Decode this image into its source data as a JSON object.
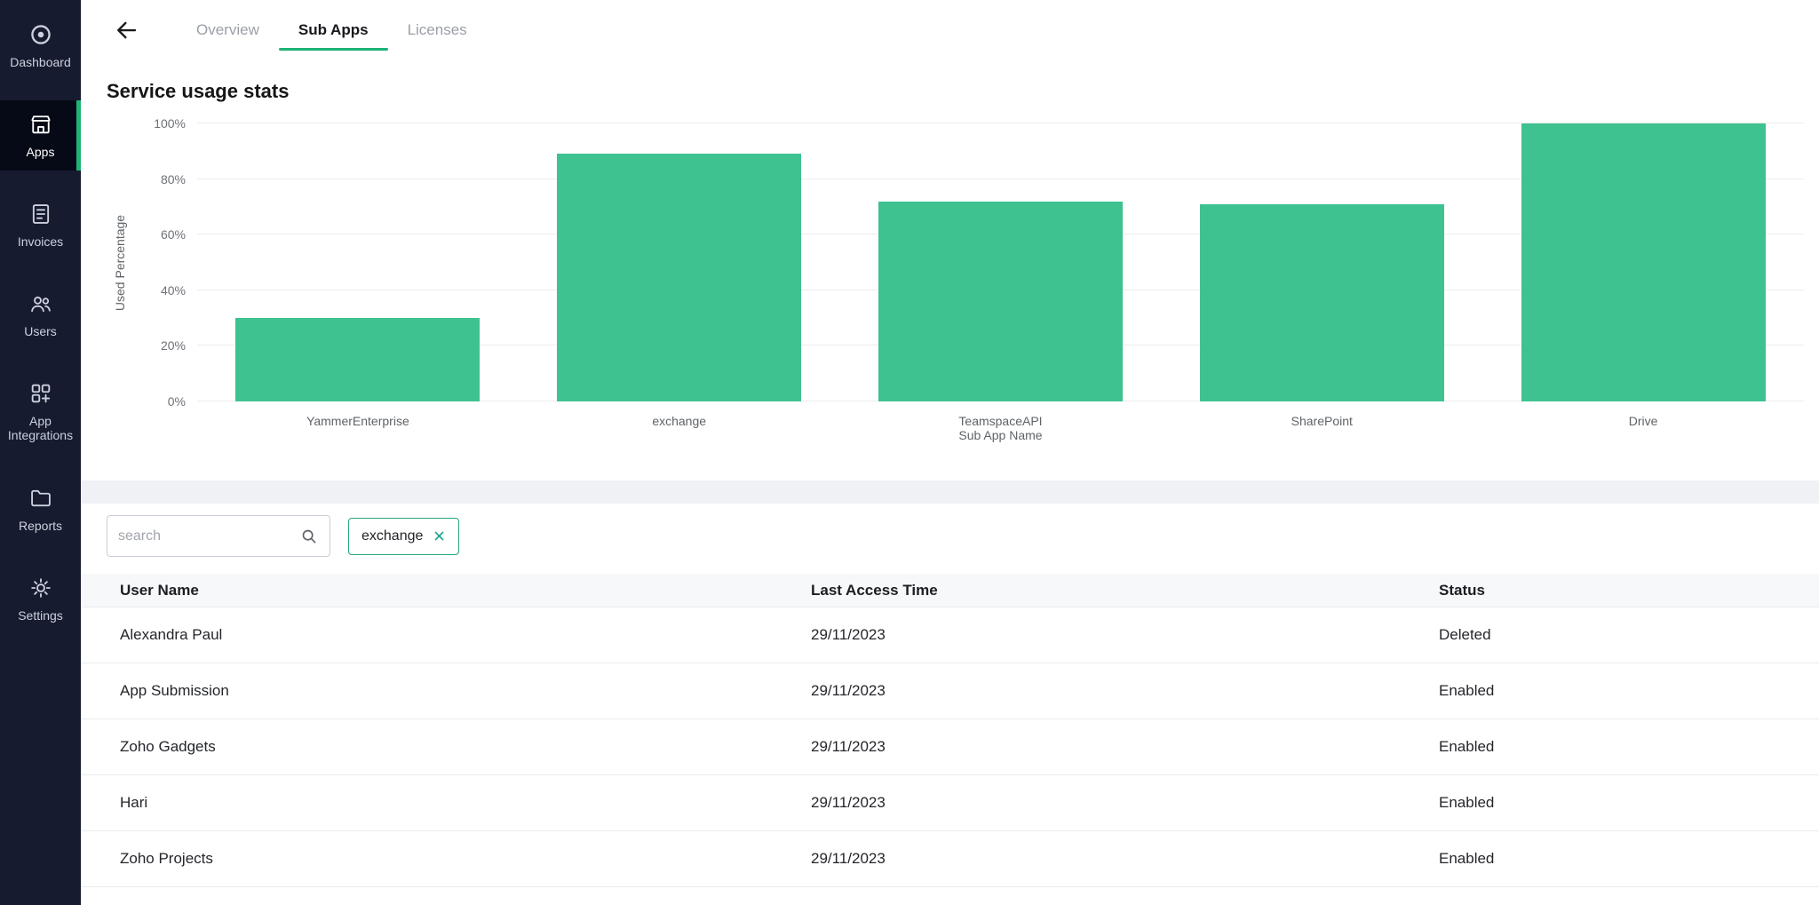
{
  "colors": {
    "accent_green": "#1db377",
    "bar_green": "#3ec28f",
    "sidebar_bg": "#161b30",
    "sidebar_active_bg": "#060a16"
  },
  "sidebar": {
    "items": [
      {
        "label": "Dashboard",
        "icon": "zoho-logo-icon"
      },
      {
        "label": "Apps",
        "icon": "storefront-icon",
        "active": true
      },
      {
        "label": "Invoices",
        "icon": "invoice-icon"
      },
      {
        "label": "Users",
        "icon": "users-icon"
      },
      {
        "label": "App Integrations",
        "icon": "integrations-icon"
      },
      {
        "label": "Reports",
        "icon": "reports-folder-icon"
      },
      {
        "label": "Settings",
        "icon": "gear-icon"
      }
    ]
  },
  "header": {
    "tabs": [
      {
        "label": "Overview",
        "active": false
      },
      {
        "label": "Sub Apps",
        "active": true
      },
      {
        "label": "Licenses",
        "active": false
      }
    ]
  },
  "main": {
    "title": "Service usage stats",
    "search": {
      "placeholder": "search"
    },
    "filter_chip": {
      "label": "exchange"
    },
    "table": {
      "columns": [
        "User Name",
        "Last Access Time",
        "Status"
      ],
      "rows": [
        [
          "Alexandra Paul",
          "29/11/2023",
          "Deleted"
        ],
        [
          "App Submission",
          "29/11/2023",
          "Enabled"
        ],
        [
          "Zoho Gadgets",
          "29/11/2023",
          "Enabled"
        ],
        [
          "Hari",
          "29/11/2023",
          "Enabled"
        ],
        [
          "Zoho Projects",
          "29/11/2023",
          "Enabled"
        ]
      ]
    }
  },
  "chart_data": {
    "type": "bar",
    "categories": [
      "YammerEnterprise",
      "exchange",
      "TeamspaceAPI",
      "SharePoint",
      "Drive"
    ],
    "values": [
      30,
      89,
      72,
      71,
      100
    ],
    "title": "Service usage stats",
    "xlabel": "Sub App Name",
    "ylabel": "Used Percentage",
    "ylim": [
      0,
      100
    ],
    "yticks": [
      "0%",
      "20%",
      "40%",
      "60%",
      "80%",
      "100%"
    ],
    "bar_color": "#3ec28f",
    "grid": true,
    "legend": false
  }
}
